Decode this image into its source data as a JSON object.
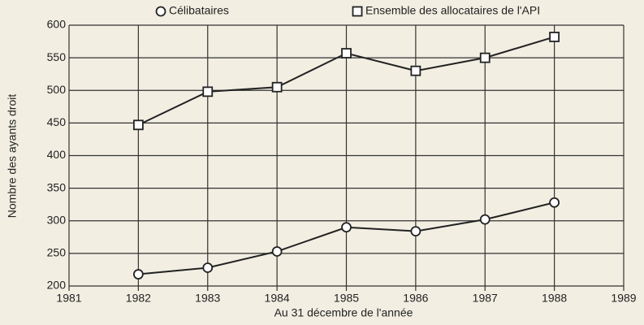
{
  "chart_data": {
    "type": "line",
    "x_label": "Au 31 décembre de l'année",
    "y_label": "Nombre des ayants droit",
    "x": [
      1982,
      1983,
      1984,
      1985,
      1986,
      1987,
      1988
    ],
    "series": [
      {
        "name": "Célibataires",
        "color": "#222222",
        "marker": "circle",
        "values": [
          218,
          228,
          253,
          290,
          284,
          302,
          328
        ]
      },
      {
        "name": "Ensemble des allocataires de l'API",
        "color": "#222222",
        "marker": "square",
        "values": [
          447,
          498,
          505,
          557,
          530,
          550,
          582
        ]
      }
    ],
    "xlim": [
      1981,
      1989
    ],
    "xticks": [
      1981,
      1982,
      1983,
      1984,
      1985,
      1986,
      1987,
      1988,
      1989
    ],
    "ylim": [
      200,
      600
    ],
    "yticks": [
      200,
      250,
      300,
      350,
      400,
      450,
      500,
      550,
      600
    ],
    "grid": true
  }
}
